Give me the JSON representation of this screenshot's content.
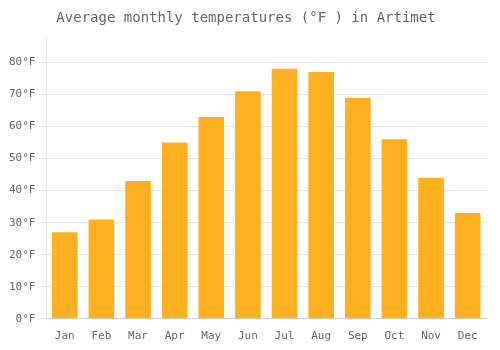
{
  "chart_data": {
    "type": "bar",
    "title": "Average monthly temperatures (°F ) in Artimet",
    "categories": [
      "Jan",
      "Feb",
      "Mar",
      "Apr",
      "May",
      "Jun",
      "Jul",
      "Aug",
      "Sep",
      "Oct",
      "Nov",
      "Dec"
    ],
    "values": [
      27,
      31,
      43,
      55,
      63,
      71,
      78,
      77,
      69,
      56,
      44,
      33
    ],
    "color": "#FFB020",
    "ylim": [
      0,
      88
    ],
    "yticks": [
      {
        "value": 0,
        "label": "0°F"
      },
      {
        "value": 10,
        "label": "10°F"
      },
      {
        "value": 20,
        "label": "20°F"
      },
      {
        "value": 30,
        "label": "30°F"
      },
      {
        "value": 40,
        "label": "40°F"
      },
      {
        "value": 50,
        "label": "50°F"
      },
      {
        "value": 60,
        "label": "60°F"
      },
      {
        "value": 70,
        "label": "70°F"
      },
      {
        "value": 80,
        "label": "80°F"
      }
    ],
    "grid": true
  }
}
